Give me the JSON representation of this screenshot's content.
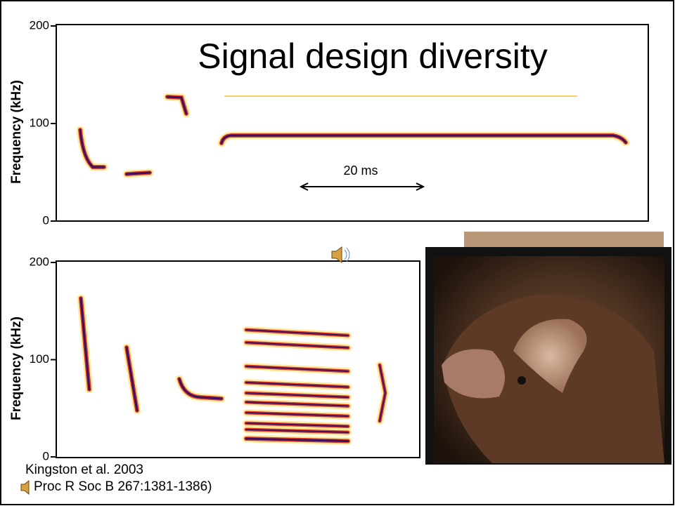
{
  "title": "Signal design diversity",
  "panels": [
    {
      "ylabel": "Frequency (kHz)",
      "ylim": [
        0,
        200
      ],
      "yticks": [
        0,
        100,
        200
      ],
      "scale_bar": "20 ms"
    },
    {
      "ylabel": "Frequency (kHz)",
      "ylim": [
        0,
        200
      ],
      "yticks": [
        0,
        100,
        200
      ]
    }
  ],
  "citation": {
    "authors": "Kingston et al. 2003",
    "journal": "Proc R Soc B 267:1381-1386)"
  }
}
